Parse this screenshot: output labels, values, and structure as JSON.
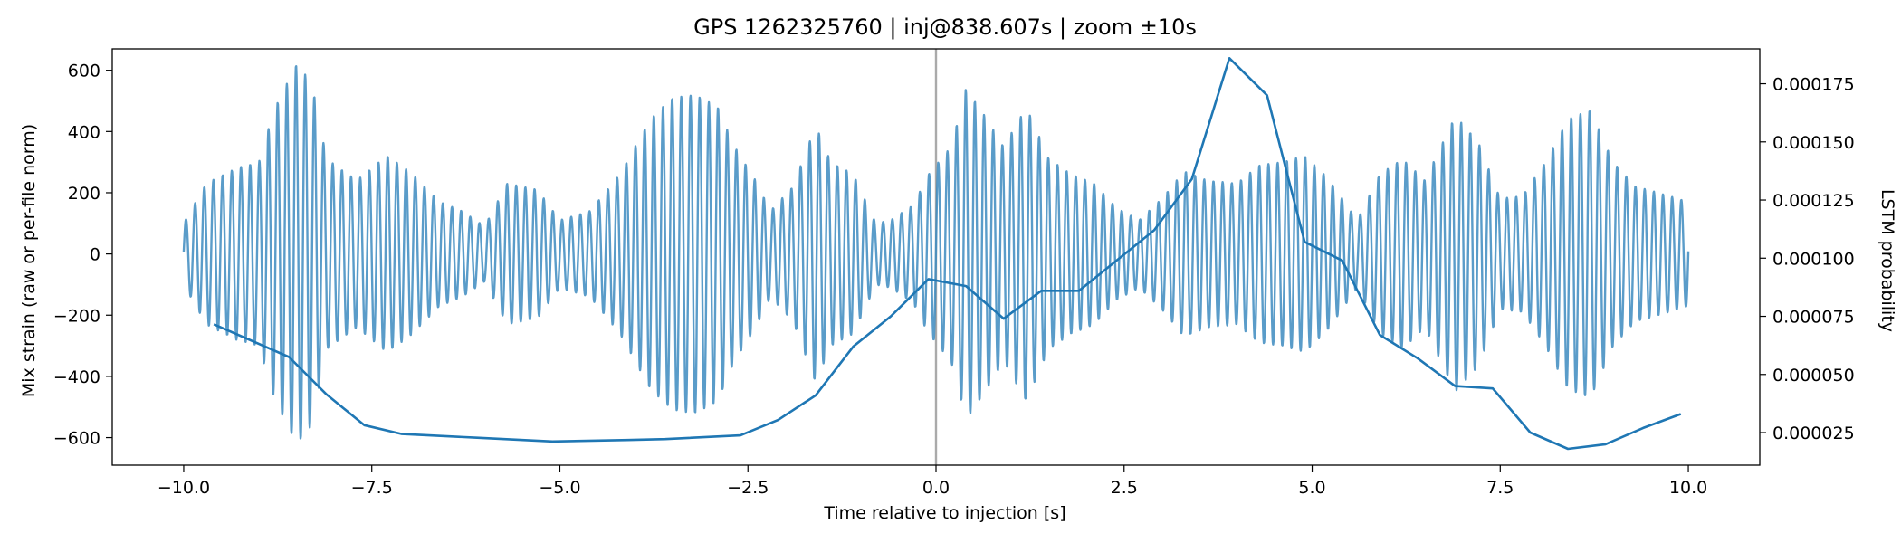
{
  "chart_data": {
    "type": "line",
    "title": "GPS 1262325760 | inj@838.607s | zoom ±10s",
    "xlabel": "Time relative to injection [s]",
    "ylabel": "Mix strain (raw or per-file norm)",
    "ylabel_right": "LSTM probability",
    "xlim": [
      -10.95,
      10.95
    ],
    "ylim": [
      -690,
      670
    ],
    "ylim_right": [
      1.1e-05,
      0.00019
    ],
    "x_ticks": [
      -10.0,
      -7.5,
      -5.0,
      -2.5,
      0.0,
      2.5,
      5.0,
      7.5,
      10.0
    ],
    "x_tick_labels": [
      "−10.0",
      "−7.5",
      "−5.0",
      "−2.5",
      "0.0",
      "2.5",
      "5.0",
      "7.5",
      "10.0"
    ],
    "y_ticks": [
      -600,
      -400,
      -200,
      0,
      200,
      400,
      600
    ],
    "y_tick_labels": [
      "−600",
      "−400",
      "−200",
      "0",
      "200",
      "400",
      "600"
    ],
    "y_right_ticks": [
      2.5e-05,
      5e-05,
      7.5e-05,
      0.0001,
      0.000125,
      0.00015,
      0.000175
    ],
    "y_right_tick_labels": [
      "0.000025",
      "0.000050",
      "0.000075",
      "0.000100",
      "0.000125",
      "0.000150",
      "0.000175"
    ],
    "injection_marker_x": 0.0,
    "colors": {
      "strain": "#3d8bc0",
      "probability": "#1f77b4",
      "marker": "#aaaaaa"
    },
    "series": [
      {
        "name": "Mix strain",
        "axis": "left",
        "x_start": -10.0,
        "x_end": 10.0,
        "osc_cycles_per_s": 8.2,
        "envelope": {
          "t": [
            -10.0,
            -9.7,
            -9.3,
            -9.0,
            -8.8,
            -8.5,
            -8.3,
            -8.1,
            -7.7,
            -7.3,
            -7.0,
            -6.6,
            -6.3,
            -6.0,
            -5.7,
            -5.3,
            -5.0,
            -4.6,
            -4.2,
            -3.8,
            -3.5,
            -3.2,
            -2.9,
            -2.7,
            -2.4,
            -2.2,
            -1.9,
            -1.6,
            -1.4,
            -1.1,
            -0.8,
            -0.6,
            -0.3,
            -0.1,
            0.2,
            0.4,
            0.6,
            0.9,
            1.2,
            1.5,
            1.8,
            2.1,
            2.4,
            2.7,
            3.0,
            3.3,
            3.6,
            4.0,
            4.3,
            4.6,
            4.9,
            5.2,
            5.6,
            5.9,
            6.2,
            6.5,
            6.9,
            7.2,
            7.5,
            7.8,
            8.1,
            8.4,
            8.7,
            9.0,
            9.3,
            9.6,
            10.0
          ],
          "a": [
            100,
            230,
            280,
            300,
            470,
            620,
            560,
            310,
            240,
            320,
            270,
            170,
            140,
            90,
            230,
            210,
            110,
            140,
            260,
            440,
            510,
            520,
            480,
            360,
            240,
            140,
            220,
            420,
            300,
            260,
            100,
            110,
            160,
            260,
            350,
            540,
            470,
            350,
            480,
            310,
            260,
            230,
            150,
            110,
            180,
            270,
            240,
            230,
            290,
            300,
            320,
            250,
            110,
            260,
            310,
            240,
            450,
            370,
            180,
            190,
            300,
            440,
            470,
            300,
            220,
            200,
            170
          ]
        }
      },
      {
        "name": "LSTM probability",
        "axis": "right",
        "x": [
          -9.6,
          -8.6,
          -8.1,
          -7.6,
          -7.1,
          -6.1,
          -5.1,
          -4.1,
          -3.6,
          -2.6,
          -2.1,
          -1.6,
          -1.1,
          -0.6,
          -0.1,
          0.4,
          0.9,
          1.4,
          1.9,
          2.4,
          2.9,
          3.4,
          3.9,
          4.4,
          4.9,
          5.4,
          5.9,
          6.4,
          6.9,
          7.4,
          7.9,
          8.4,
          8.9,
          9.4,
          9.9
        ],
        "y": [
          7.16e-05,
          5.75e-05,
          4.14e-05,
          2.82e-05,
          2.44e-05,
          2.28e-05,
          2.12e-05,
          2.18e-05,
          2.22e-05,
          2.38e-05,
          3.04e-05,
          4.1e-05,
          6.2e-05,
          7.5e-05,
          9.1e-05,
          8.8e-05,
          7.4e-05,
          8.6e-05,
          8.6e-05,
          9.9e-05,
          0.000112,
          0.000134,
          0.000186,
          0.00017,
          0.000107,
          9.9e-05,
          6.7e-05,
          5.7e-05,
          4.5e-05,
          4.4e-05,
          2.5e-05,
          1.8e-05,
          2e-05,
          2.7e-05,
          3.3e-05
        ]
      }
    ]
  }
}
